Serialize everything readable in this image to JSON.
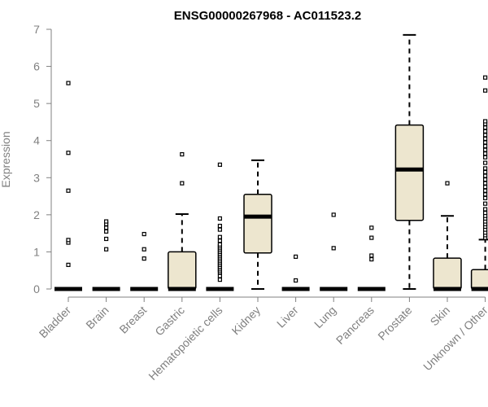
{
  "chart_data": {
    "type": "boxplot",
    "title": "ENSG00000267968 - AC011523.2",
    "xlabel": "",
    "ylabel": "Expression",
    "ylim": [
      0,
      7
    ],
    "yticks": [
      0,
      1,
      2,
      3,
      4,
      5,
      6,
      7
    ],
    "grid": false,
    "colors": {
      "box_fill": "#EDE6CF",
      "box_stroke": "#000000",
      "axis": "#808080"
    },
    "categories": [
      "Bladder",
      "Brain",
      "Breast",
      "Gastric",
      "Hematopoietic cells",
      "Kidney",
      "Liver",
      "Lung",
      "Pancreas",
      "Prostate",
      "Skin",
      "Unknown / Other"
    ],
    "boxes": [
      {
        "q1": 0,
        "median": 0,
        "q3": 0,
        "whisker_low": 0,
        "whisker_high": 0,
        "outliers": [
          0.65,
          1.25,
          1.32,
          2.65,
          3.67,
          5.55
        ]
      },
      {
        "q1": 0,
        "median": 0,
        "q3": 0,
        "whisker_low": 0,
        "whisker_high": 0,
        "outliers": [
          1.07,
          1.35,
          1.55,
          1.65,
          1.75,
          1.82
        ]
      },
      {
        "q1": 0,
        "median": 0,
        "q3": 0,
        "whisker_low": 0,
        "whisker_high": 0,
        "outliers": [
          0.82,
          1.07,
          1.48
        ]
      },
      {
        "q1": 0,
        "median": 0,
        "q3": 1.0,
        "whisker_low": 0,
        "whisker_high": 2.02,
        "outliers": [
          2.85,
          3.63
        ]
      },
      {
        "q1": 0,
        "median": 0,
        "q3": 0,
        "whisker_low": 0,
        "whisker_high": 0,
        "outliers": [
          0.25,
          0.35,
          0.45,
          0.5,
          0.55,
          0.6,
          0.65,
          0.7,
          0.75,
          0.8,
          0.85,
          0.9,
          0.95,
          1.0,
          1.05,
          1.1,
          1.15,
          1.2,
          1.3,
          1.4,
          1.6,
          1.7,
          1.9,
          3.35
        ]
      },
      {
        "q1": 0.97,
        "median": 1.95,
        "q3": 2.55,
        "whisker_low": 0,
        "whisker_high": 3.47,
        "outliers": []
      },
      {
        "q1": 0,
        "median": 0,
        "q3": 0,
        "whisker_low": 0,
        "whisker_high": 0,
        "outliers": [
          0.23,
          0.87
        ]
      },
      {
        "q1": 0,
        "median": 0,
        "q3": 0,
        "whisker_low": 0,
        "whisker_high": 0,
        "outliers": [
          1.1,
          2.0
        ]
      },
      {
        "q1": 0,
        "median": 0,
        "q3": 0,
        "whisker_low": 0,
        "whisker_high": 0,
        "outliers": [
          0.8,
          0.9,
          1.38,
          1.65
        ]
      },
      {
        "q1": 1.85,
        "median": 3.22,
        "q3": 4.42,
        "whisker_low": 0,
        "whisker_high": 6.85,
        "outliers": []
      },
      {
        "q1": 0,
        "median": 0,
        "q3": 0.83,
        "whisker_low": 0,
        "whisker_high": 1.97,
        "outliers": [
          2.85
        ]
      },
      {
        "q1": 0,
        "median": 0,
        "q3": 0.52,
        "whisker_low": 0,
        "whisker_high": 1.33,
        "outliers": [
          1.38,
          1.45,
          1.52,
          1.6,
          1.68,
          1.75,
          1.82,
          1.9,
          1.97,
          2.05,
          2.15,
          2.3,
          2.45,
          2.55,
          2.65,
          2.75,
          2.85,
          2.95,
          3.05,
          3.15,
          3.25,
          3.4,
          3.55,
          3.65,
          3.75,
          3.85,
          3.95,
          4.05,
          4.15,
          4.25,
          4.35,
          4.45,
          4.52,
          5.35,
          5.7
        ]
      }
    ]
  }
}
